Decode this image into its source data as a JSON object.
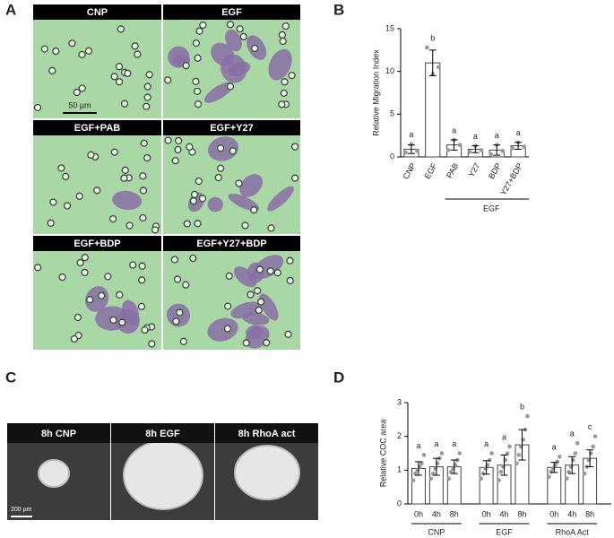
{
  "panels": {
    "a": {
      "letter": "A",
      "images": [
        "CNP",
        "EGF",
        "EGF+PAB",
        "EGF+Y27",
        "EGF+BDP",
        "EGF+Y27+BDP"
      ],
      "scale_bar": "50 µm"
    },
    "b": {
      "letter": "B"
    },
    "c": {
      "letter": "C",
      "images": [
        "8h CNP",
        "8h EGF",
        "8h RhoA act"
      ],
      "scale_bar": "200 µm"
    },
    "d": {
      "letter": "D"
    }
  },
  "chart_data": [
    {
      "type": "bar",
      "ylabel": "Relative Migration Index",
      "categories": [
        "CNP",
        "EGF",
        "PAB",
        "Y27",
        "BDP",
        "Y27+BDP"
      ],
      "values": [
        0.9,
        11.0,
        1.4,
        0.9,
        0.8,
        1.3
      ],
      "errors": [
        0.5,
        1.5,
        0.6,
        0.4,
        0.6,
        0.4
      ],
      "points": [
        [
          0.5,
          1.5,
          0.7
        ],
        [
          12.8,
          9.7,
          10.5
        ],
        [
          0.8,
          2.0,
          1.4
        ],
        [
          0.6,
          1.3,
          0.8
        ],
        [
          0.3,
          1.4,
          0.7
        ],
        [
          1.0,
          1.7,
          1.2
        ]
      ],
      "letters": [
        "a",
        "b",
        "a",
        "a",
        "a",
        "a"
      ],
      "group_label": "EGF",
      "ylim": [
        0,
        15
      ],
      "yticks": [
        0,
        5,
        10,
        15
      ],
      "bar_color": "#ffffff",
      "point_color": "#999999"
    },
    {
      "type": "grouped-bar",
      "ylabel": "Relative COC area",
      "groups": [
        {
          "name": "CNP",
          "categories": [
            "0h",
            "4h",
            "8h"
          ],
          "values": [
            1.05,
            1.1,
            1.1
          ],
          "errors": [
            0.2,
            0.25,
            0.2
          ],
          "letters": [
            "a",
            "a",
            "a"
          ],
          "points": [
            [
              0.7,
              0.9,
              1.0,
              1.1,
              1.2,
              1.45
            ],
            [
              0.75,
              0.9,
              1.05,
              1.2,
              1.35,
              1.5
            ],
            [
              0.75,
              0.95,
              1.05,
              1.15,
              1.3,
              1.5
            ]
          ]
        },
        {
          "name": "EGF",
          "categories": [
            "0h",
            "4h",
            "8h"
          ],
          "values": [
            1.08,
            1.15,
            1.75
          ],
          "errors": [
            0.2,
            0.3,
            0.45
          ],
          "letters": [
            "a",
            "a",
            "b"
          ],
          "points": [
            [
              0.75,
              0.9,
              1.05,
              1.15,
              1.3,
              1.5
            ],
            [
              0.7,
              0.95,
              1.1,
              1.3,
              1.5,
              1.7
            ],
            [
              1.2,
              1.45,
              1.7,
              1.9,
              2.2,
              2.6
            ]
          ]
        },
        {
          "name": "RhoA Act",
          "categories": [
            "0h",
            "4h",
            "8h"
          ],
          "values": [
            1.08,
            1.15,
            1.35
          ],
          "errors": [
            0.15,
            0.25,
            0.25
          ],
          "letters": [
            "a",
            "a",
            "c"
          ],
          "points": [
            [
              0.8,
              0.95,
              1.05,
              1.15,
              1.25,
              1.4
            ],
            [
              0.75,
              0.95,
              1.1,
              1.3,
              1.5,
              1.8
            ],
            [
              0.9,
              1.1,
              1.3,
              1.5,
              1.7,
              2.0
            ]
          ]
        }
      ],
      "ylim": [
        0,
        3
      ],
      "yticks": [
        0,
        1,
        2,
        3
      ],
      "bar_color": "#ffffff",
      "point_color": "#999999"
    }
  ]
}
